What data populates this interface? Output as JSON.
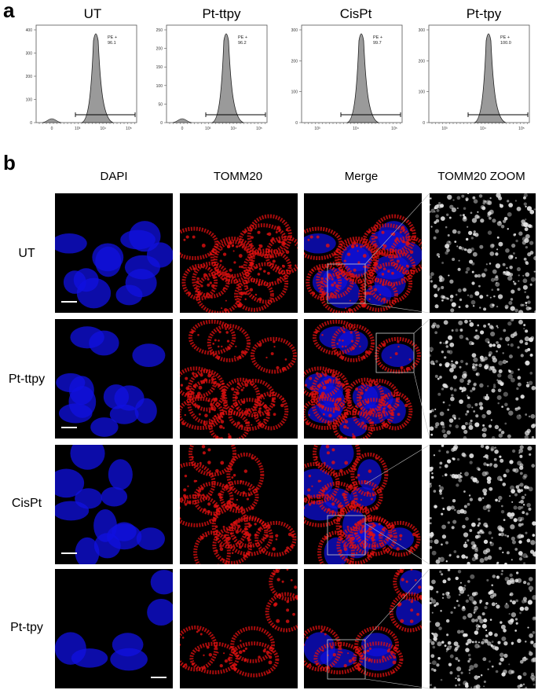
{
  "panel_a": {
    "letter": "a",
    "histograms": [
      {
        "title": "UT",
        "gate_label": "PE +",
        "gate_value": "96.1",
        "yticks": [
          "0",
          "100",
          "200",
          "300",
          "400"
        ],
        "xticks": [
          "0",
          "10³",
          "10⁴",
          "10⁵"
        ]
      },
      {
        "title": "Pt-ttpy",
        "gate_label": "PE +",
        "gate_value": "96.2",
        "yticks": [
          "0",
          "50",
          "100",
          "150",
          "200",
          "250"
        ],
        "xticks": [
          "0",
          "10³",
          "10⁴",
          "10⁵"
        ]
      },
      {
        "title": "CisPt",
        "gate_label": "PE +",
        "gate_value": "99.7",
        "yticks": [
          "0",
          "100",
          "200",
          "300"
        ],
        "xticks": [
          "10³",
          "10⁴",
          "10⁵"
        ]
      },
      {
        "title": "Pt-tpy",
        "gate_label": "PE +",
        "gate_value": "100.0",
        "yticks": [
          "0",
          "100",
          "200",
          "300"
        ],
        "xticks": [
          "10³",
          "10⁴",
          "10⁵"
        ]
      }
    ]
  },
  "panel_b": {
    "letter": "b",
    "columns": [
      "DAPI",
      "TOMM20",
      "Merge",
      "TOMM20 ZOOM"
    ],
    "rows": [
      "UT",
      "Pt-ttpy",
      "CisPt",
      "Pt-tpy"
    ],
    "colors": {
      "dapi": "#1010e0",
      "tomm20": "#e01010",
      "zoom": "#e8e8e8",
      "background": "#000000"
    }
  }
}
